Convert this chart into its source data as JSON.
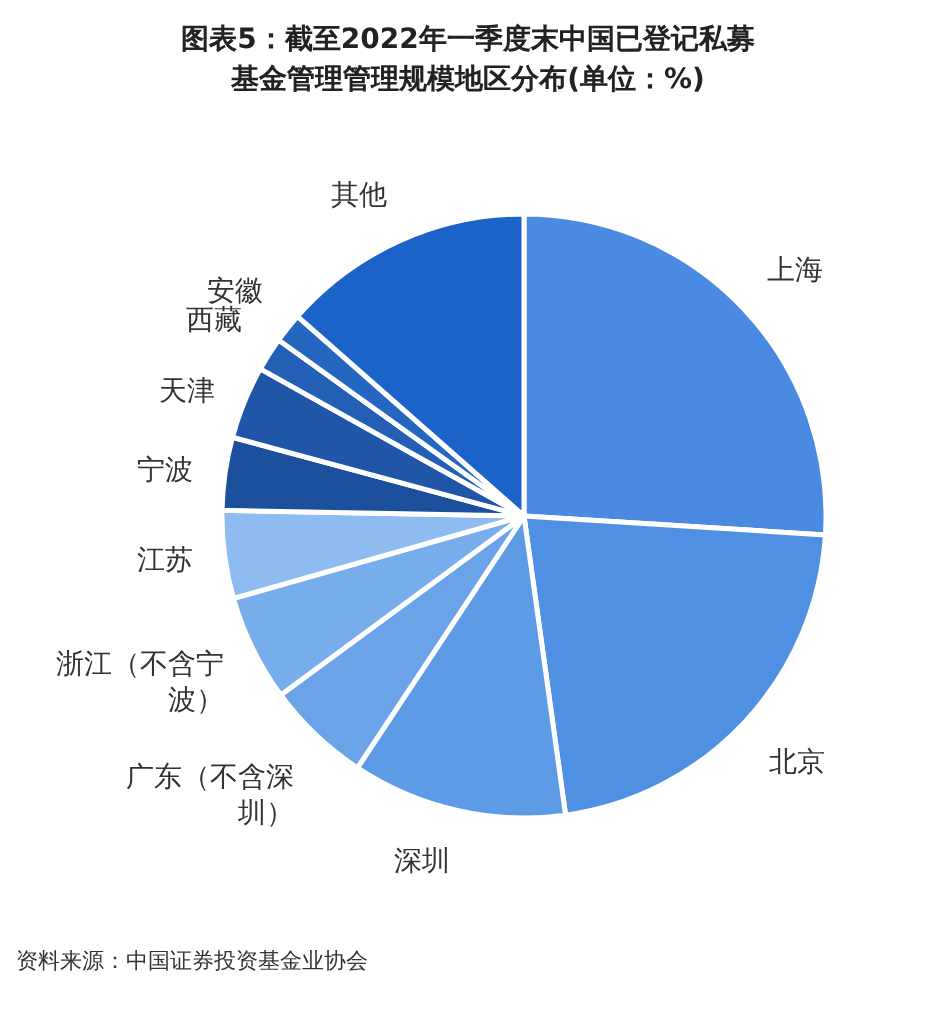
{
  "chart_data": {
    "type": "pie",
    "title": "图表5：截至2022年一季度末中国已登记私募基金管理管理规模地区分布(单位：%)",
    "categories": [
      "上海",
      "北京",
      "深圳",
      "广东（不含深圳）",
      "浙江（不含宁波）",
      "江苏",
      "宁波",
      "天津",
      "西藏",
      "安徽",
      "其他"
    ],
    "values": [
      26.0,
      21.8,
      11.5,
      5.6,
      5.7,
      4.7,
      3.9,
      3.9,
      1.8,
      1.6,
      13.5
    ],
    "colors": [
      "#4a8ae0",
      "#5090e3",
      "#5e9be6",
      "#6aa3e8",
      "#78adec",
      "#8fbcf0",
      "#1c4f9c",
      "#1f56a8",
      "#2360b5",
      "#2566c0",
      "#1b63c9"
    ],
    "annotations": [
      "资料来源：中国证券投资基金业协会"
    ]
  }
}
